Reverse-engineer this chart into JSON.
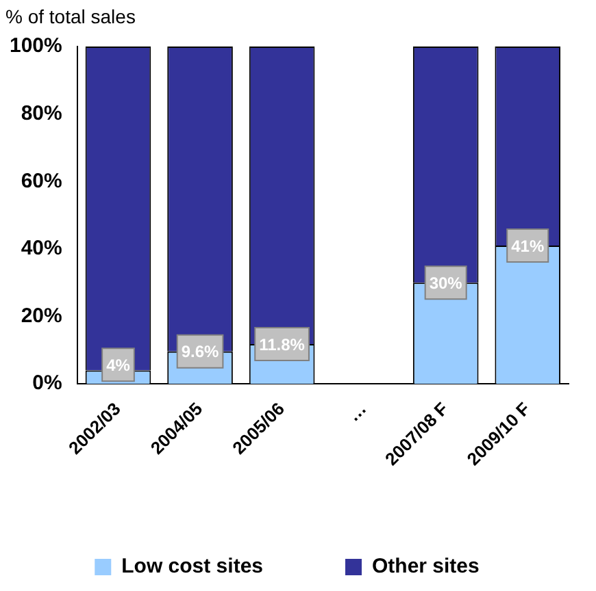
{
  "chart_data": {
    "type": "bar",
    "stacked": true,
    "ylabel": "% of total sales",
    "categories": [
      "2002/03",
      "2004/05",
      "2005/06",
      "…",
      "2007/08 F",
      "2009/10 F"
    ],
    "series": [
      {
        "name": "Low cost sites",
        "color": "#99ccff",
        "values": [
          4,
          9.6,
          11.8,
          null,
          30,
          41
        ],
        "value_labels": [
          "4%",
          "9.6%",
          "11.8%",
          null,
          "30%",
          "41%"
        ]
      },
      {
        "name": "Other sites",
        "color": "#333399",
        "values": [
          96,
          90.4,
          88.2,
          null,
          70,
          59
        ]
      }
    ],
    "ylim": [
      0,
      100
    ],
    "yticks": [
      {
        "value": 0,
        "label": "0%"
      },
      {
        "value": 20,
        "label": "20%"
      },
      {
        "value": 40,
        "label": "40%"
      },
      {
        "value": 60,
        "label": "60%"
      },
      {
        "value": 80,
        "label": "80%"
      },
      {
        "value": 100,
        "label": "100%"
      }
    ],
    "grid": false,
    "legend": "bottom"
  }
}
